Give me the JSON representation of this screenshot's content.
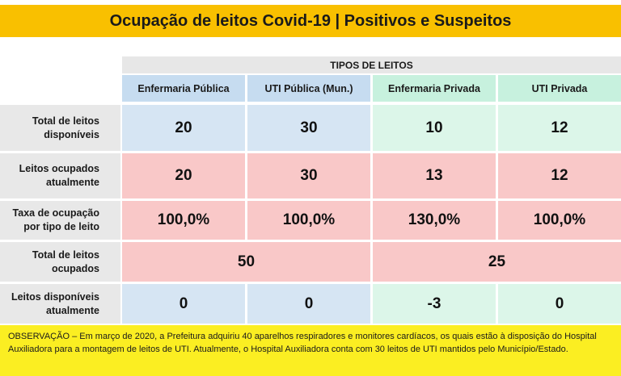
{
  "title": "Ocupação de leitos Covid-19 | Positivos e Suspeitos",
  "group_header": "TIPOS DE LEITOS",
  "columns": [
    "Enfermaria Pública",
    "UTI Pública (Mun.)",
    "Enfermaria Privada",
    "UTI Privada"
  ],
  "rows": [
    {
      "label": "Total de leitos\ndisponíveis",
      "values": [
        "20",
        "30",
        "10",
        "12"
      ]
    },
    {
      "label": "Leitos ocupados\natualmente",
      "values": [
        "20",
        "30",
        "13",
        "12"
      ]
    },
    {
      "label": "Taxa de ocupação\npor tipo de leito",
      "values": [
        "100,0%",
        "100,0%",
        "130,0%",
        "100,0%"
      ]
    },
    {
      "label": "Total de leitos\nocupados",
      "values": [
        "50",
        "25"
      ]
    },
    {
      "label": "Leitos disponíveis\natualmente",
      "values": [
        "0",
        "0",
        "-3",
        "0"
      ]
    }
  ],
  "note": "OBSERVAÇÃO – Em março de 2020, a Prefeitura adquiriu 40 aparelhos respiradores e monitores cardíacos, os quais estão à disposição do Hospital Auxiliadora para a montagem de leitos de UTI. Atualmente, o Hospital Auxiliadora conta com 30 leitos de UTI mantidos pelo Município/Estado.",
  "colors": {
    "title_bg": "#f9c000",
    "public_bg": "#d6e5f3",
    "private_bg": "#dcf6e9",
    "occupied_bg": "#f9c8c8",
    "note_bg": "#fbee22"
  }
}
